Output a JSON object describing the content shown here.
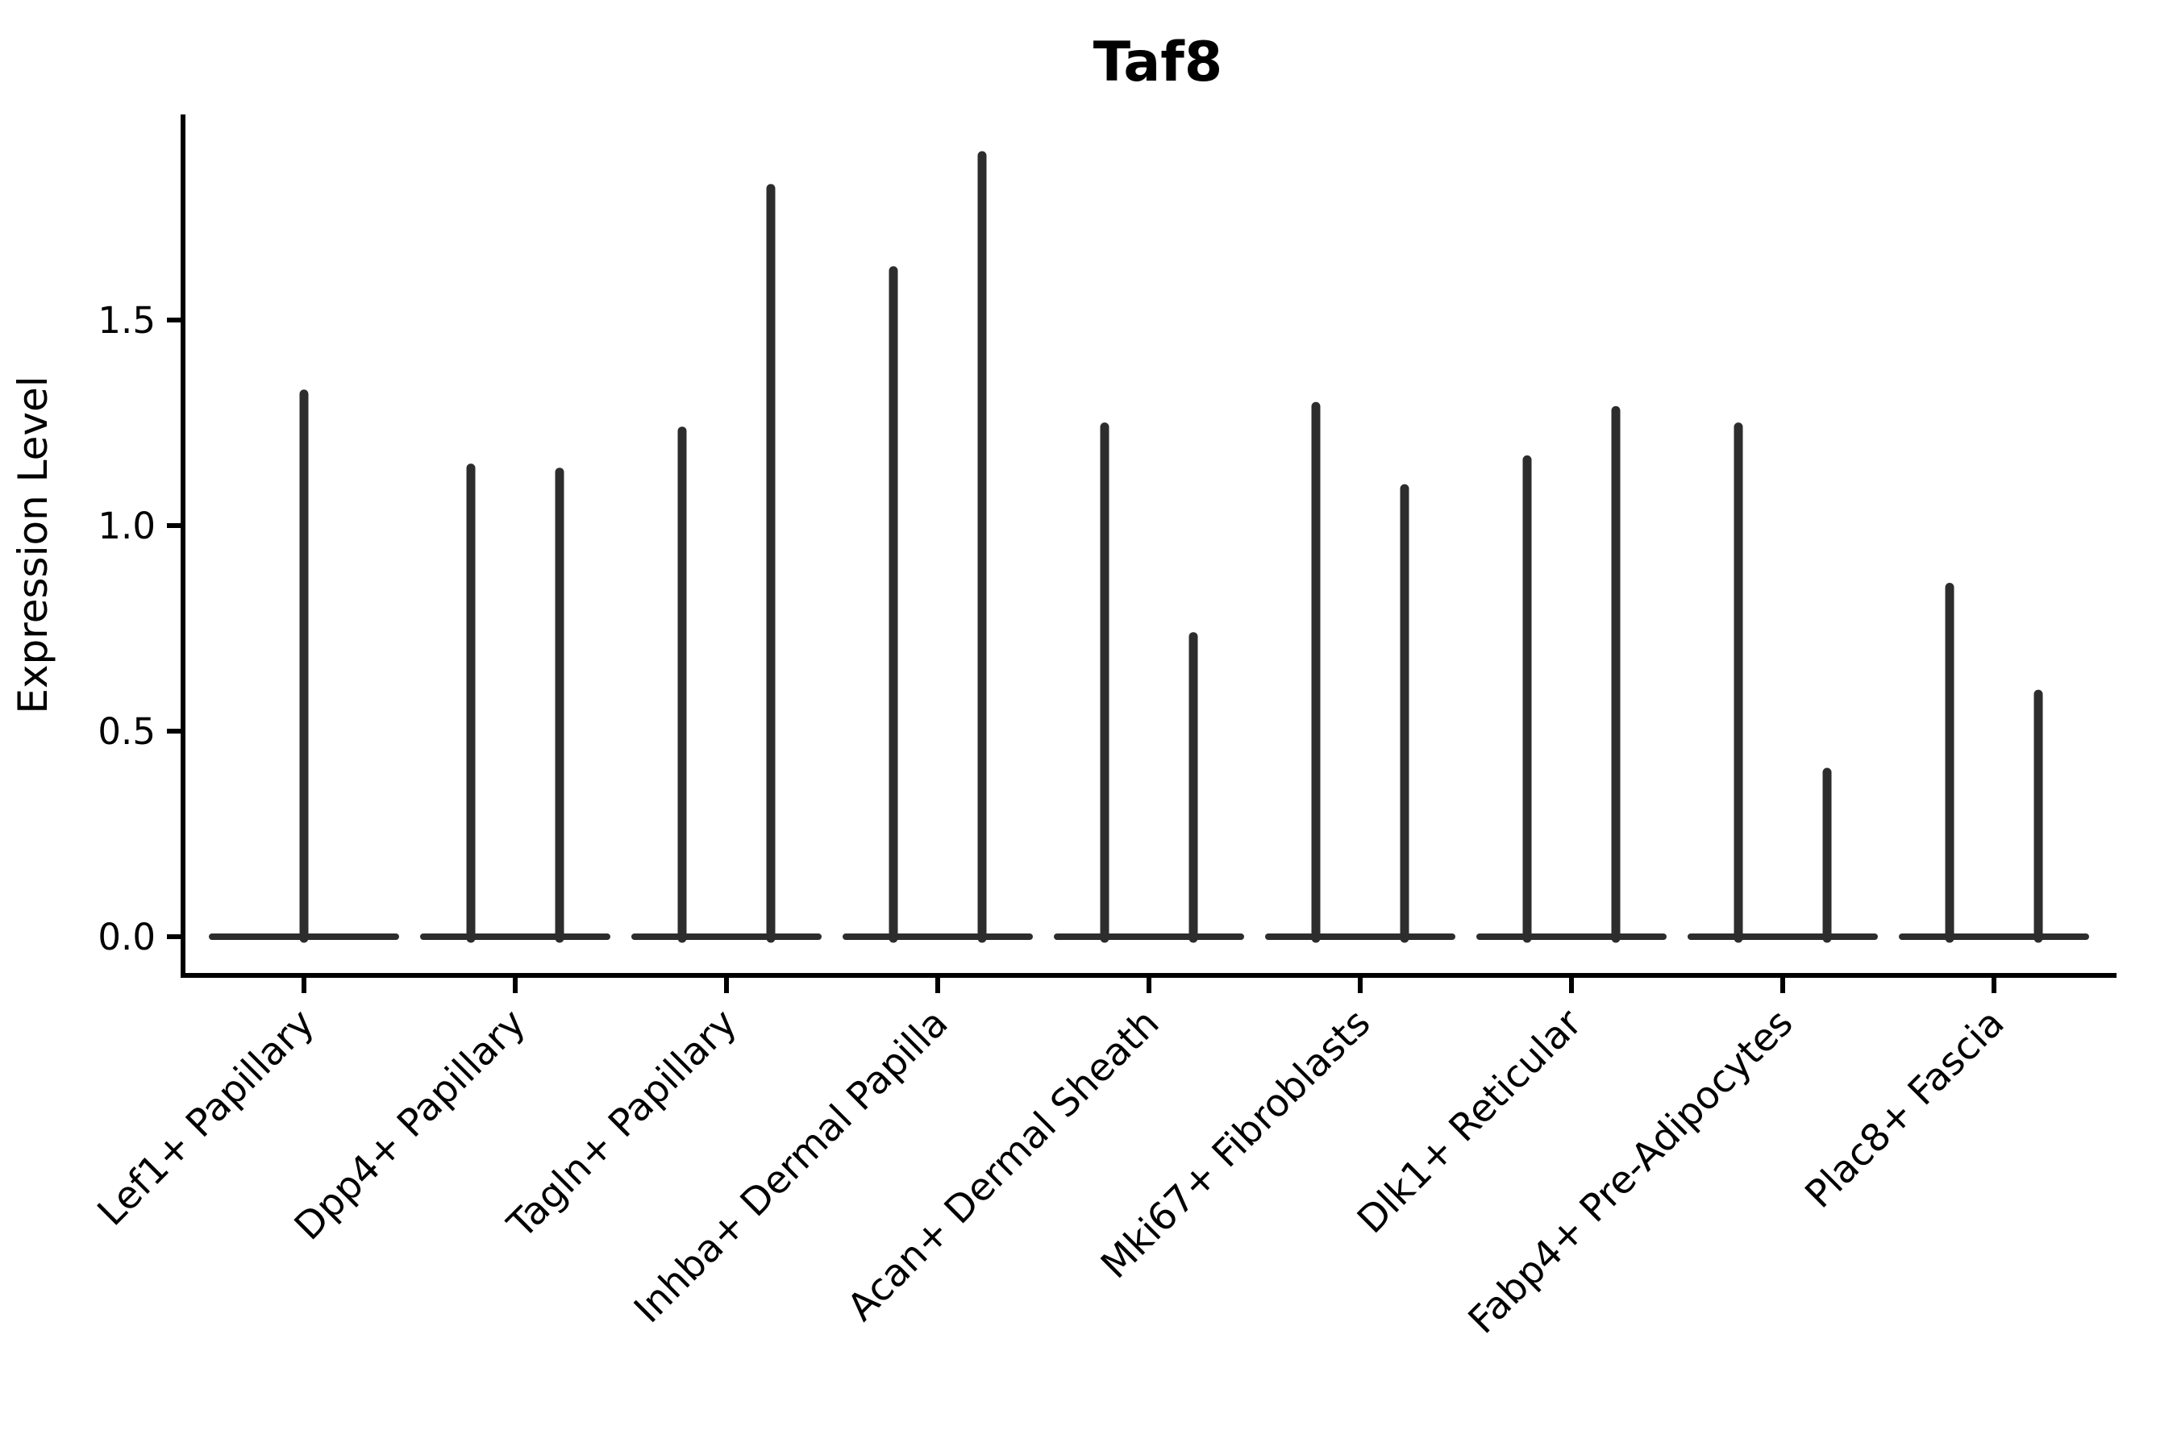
{
  "chart_data": {
    "type": "violin",
    "title": "Taf8",
    "ylabel": "Expression Level",
    "xlabel": "",
    "ytick_labels": [
      "0.0",
      "0.5",
      "1.0",
      "1.5"
    ],
    "ytick_values": [
      0.0,
      0.5,
      1.0,
      1.5
    ],
    "ylim": [
      -0.095,
      2.0
    ],
    "grid": false,
    "legend": "none",
    "baseline_value": 0.0,
    "x_label_rotation_deg": 45,
    "categories": [
      "Lef1+ Papillary",
      "Dpp4+ Papillary",
      "Tagln+ Papillary",
      "Inhba+ Dermal Papilla",
      "Acan+ Dermal Sheath",
      "Mki67+ Fibroblasts",
      "Dlk1+ Reticular",
      "Fabp4+ Pre-Adipocytes",
      "Plac8+ Fascia"
    ],
    "series": [
      {
        "category": "Lef1+ Papillary",
        "violin_max_values": [
          1.32
        ]
      },
      {
        "category": "Dpp4+ Papillary",
        "violin_max_values": [
          1.14,
          1.13
        ]
      },
      {
        "category": "Tagln+ Papillary",
        "violin_max_values": [
          1.23,
          1.82
        ]
      },
      {
        "category": "Inhba+ Dermal Papilla",
        "violin_max_values": [
          1.62,
          1.9
        ]
      },
      {
        "category": "Acan+ Dermal Sheath",
        "violin_max_values": [
          1.24,
          0.73
        ]
      },
      {
        "category": "Mki67+ Fibroblasts",
        "violin_max_values": [
          1.29,
          1.09
        ]
      },
      {
        "category": "Dlk1+ Reticular",
        "violin_max_values": [
          1.16,
          1.28
        ]
      },
      {
        "category": "Fabp4+ Pre-Adipocytes",
        "violin_max_values": [
          1.24,
          0.4
        ]
      },
      {
        "category": "Plac8+ Fascia",
        "violin_max_values": [
          0.85,
          0.59
        ]
      }
    ],
    "description": "Violin plot of Taf8 expression per fibroblast cell-type cluster; most cells at 0 giving flat baselines with thin spikes up to the maximum expression value.",
    "colors": {
      "violin": "#2d2d2d",
      "axis": "#000000",
      "text": "#000000",
      "background": "#ffffff"
    }
  }
}
